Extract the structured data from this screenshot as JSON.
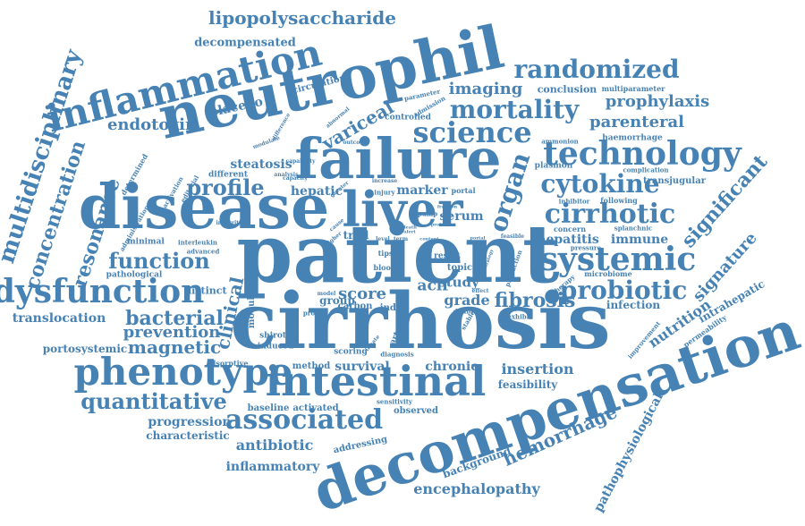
{
  "theme": {
    "word_color": "#4682b4",
    "background": "#ffffff"
  },
  "words": [
    "cirrhosis",
    "patient",
    "neutrophil",
    "decompensation",
    "disease",
    "failure",
    "liver",
    "inflammation",
    "intestinal",
    "phenotype",
    "dysfunction",
    "randomized",
    "mortality",
    "science",
    "technology",
    "cytokine",
    "systemic",
    "cirrhotic",
    "probiotic",
    "associated",
    "multidisciplinary",
    "concentration",
    "resonance",
    "function",
    "profile",
    "organ",
    "lipopolysaccharide",
    "decompensated",
    "imaging",
    "prophylaxis",
    "parenteral",
    "endotoxin",
    "variceal",
    "steatosis",
    "hepatic",
    "marker",
    "serum",
    "study",
    "aclf",
    "grade",
    "fibrosis",
    "score",
    "bacterial",
    "prevention",
    "magnetic",
    "quantitative",
    "translocation",
    "portosystemic",
    "clinical",
    "hepatitis",
    "immune",
    "significant",
    "signature",
    "nutrition",
    "intrahepatic",
    "infection",
    "hemorrhage",
    "pathophysiological",
    "antibiotic",
    "inflammatory",
    "encephalopathy",
    "background",
    "insertion",
    "feasibility",
    "survival",
    "chronic",
    "progression",
    "characteristic",
    "baseline",
    "activated",
    "observed",
    "sensitivity",
    "addressing",
    "shirota",
    "induced",
    "adsorptive",
    "method",
    "scoring",
    "diagnosis",
    "placebo",
    "circulation",
    "conclusion",
    "multiparameter",
    "ammonion",
    "haemorrhage",
    "plasmon",
    "transjugular",
    "complication",
    "inhibitor",
    "following",
    "concern",
    "splanchnic",
    "pressure",
    "microbiome",
    "therapy",
    "improvement",
    "permeability",
    "exhibit",
    "hospital",
    "modulation",
    "distinct",
    "pathological",
    "advanced",
    "interleukin",
    "minimal",
    "determined",
    "activation",
    "editorial",
    "different",
    "difference",
    "modulate",
    "controlled",
    "admission",
    "parameter",
    "abnormal",
    "capacity",
    "integrity",
    "administration",
    "proton",
    "carbon",
    "group",
    "index",
    "trial",
    "result",
    "topic",
    "tips",
    "blood",
    "arterial",
    "double",
    "stable",
    "innate",
    "model",
    "effect",
    "portal",
    "injury",
    "pump",
    "greater",
    "outcome",
    "analysis",
    "capability",
    "higher",
    "cause",
    "level",
    "term",
    "fraction",
    "content",
    "protein",
    "production",
    "portal",
    "strategy",
    "death",
    "alert",
    "increase",
    "feasible"
  ]
}
